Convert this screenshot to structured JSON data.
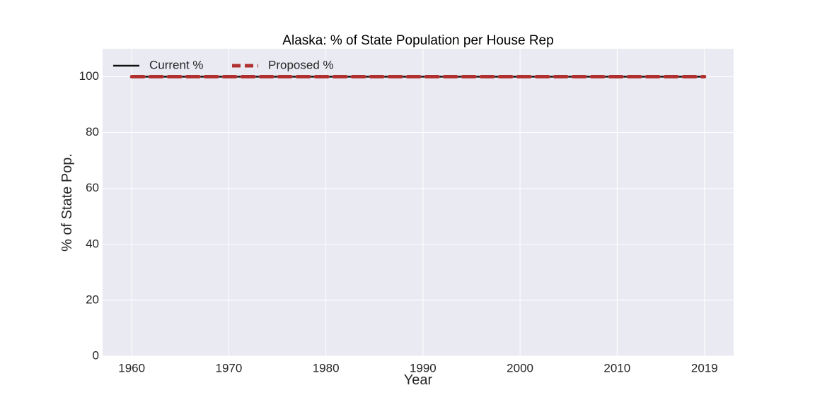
{
  "chart_data": {
    "type": "line",
    "title": "Alaska: % of State Population per House Rep",
    "xlabel": "Year",
    "ylabel": "% of State Pop.",
    "x": [
      1960,
      1961,
      1962,
      1963,
      1964,
      1965,
      1966,
      1967,
      1968,
      1969,
      1970,
      1971,
      1972,
      1973,
      1974,
      1975,
      1976,
      1977,
      1978,
      1979,
      1980,
      1981,
      1982,
      1983,
      1984,
      1985,
      1986,
      1987,
      1988,
      1989,
      1990,
      1991,
      1992,
      1993,
      1994,
      1995,
      1996,
      1997,
      1998,
      1999,
      2000,
      2001,
      2002,
      2003,
      2004,
      2005,
      2006,
      2007,
      2008,
      2009,
      2010,
      2011,
      2012,
      2013,
      2014,
      2015,
      2016,
      2017,
      2018,
      2019
    ],
    "series": [
      {
        "name": "Current %",
        "color": "#111111",
        "style": "solid",
        "values": [
          100,
          100,
          100,
          100,
          100,
          100,
          100,
          100,
          100,
          100,
          100,
          100,
          100,
          100,
          100,
          100,
          100,
          100,
          100,
          100,
          100,
          100,
          100,
          100,
          100,
          100,
          100,
          100,
          100,
          100,
          100,
          100,
          100,
          100,
          100,
          100,
          100,
          100,
          100,
          100,
          100,
          100,
          100,
          100,
          100,
          100,
          100,
          100,
          100,
          100,
          100,
          100,
          100,
          100,
          100,
          100,
          100,
          100,
          100,
          100
        ]
      },
      {
        "name": "Proposed %",
        "color": "#b03030",
        "style": "dashed",
        "values": [
          100,
          100,
          100,
          100,
          100,
          100,
          100,
          100,
          100,
          100,
          100,
          100,
          100,
          100,
          100,
          100,
          100,
          100,
          100,
          100,
          100,
          100,
          100,
          100,
          100,
          100,
          100,
          100,
          100,
          100,
          100,
          100,
          100,
          100,
          100,
          100,
          100,
          100,
          100,
          100,
          100,
          100,
          100,
          100,
          100,
          100,
          100,
          100,
          100,
          100,
          100,
          100,
          100,
          100,
          100,
          100,
          100,
          100,
          100,
          100
        ]
      }
    ],
    "xticks": [
      1960,
      1970,
      1980,
      1990,
      2000,
      2010,
      2019
    ],
    "yticks": [
      0,
      20,
      40,
      60,
      80,
      100
    ],
    "xlim": [
      1957,
      2022
    ],
    "ylim": [
      0,
      110
    ],
    "grid": true,
    "legend_position": "top-left",
    "legend_columns": 2,
    "background": "#eaeaf2"
  }
}
